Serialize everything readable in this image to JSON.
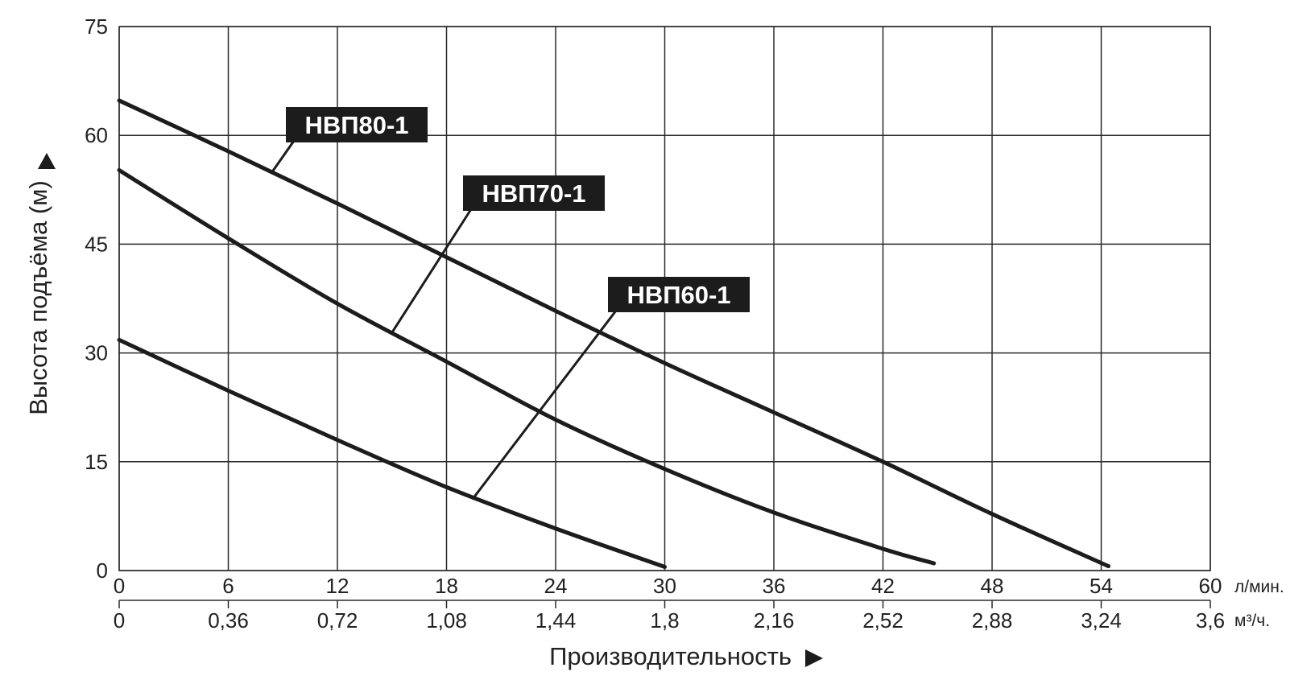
{
  "chart_data": {
    "type": "line",
    "xlabel": "Производительность",
    "ylabel": "Высота подъёма (м)",
    "x_unit": "л/мин.",
    "x2_unit": "м³/ч.",
    "x_ticks": [
      "0",
      "6",
      "12",
      "18",
      "24",
      "30",
      "36",
      "42",
      "48",
      "54",
      "60"
    ],
    "x2_ticks": [
      "0",
      "0,36",
      "0,72",
      "1,08",
      "1,44",
      "1,8",
      "2,16",
      "2,52",
      "2,88",
      "3,24",
      "3,6"
    ],
    "y_ticks": [
      "0",
      "15",
      "30",
      "45",
      "60",
      "75"
    ],
    "xlim": [
      0,
      60
    ],
    "ylim": [
      0,
      75
    ],
    "grid": true,
    "series": [
      {
        "name": "НВП80-1",
        "x": [
          0,
          6,
          12,
          18,
          24,
          30,
          36,
          42,
          48,
          54.4
        ],
        "y": [
          64.8,
          57.8,
          50.6,
          43.2,
          35.8,
          28.6,
          21.8,
          15.0,
          7.8,
          0.6
        ]
      },
      {
        "name": "НВП70-1",
        "x": [
          0,
          6,
          12,
          18,
          24,
          30,
          36,
          42,
          44.8
        ],
        "y": [
          55.2,
          45.8,
          36.8,
          28.8,
          20.8,
          14.0,
          8.0,
          3.0,
          1.0
        ]
      },
      {
        "name": "НВП60-1",
        "x": [
          0,
          6,
          12,
          18,
          24,
          30
        ],
        "y": [
          31.8,
          24.8,
          18.0,
          11.5,
          5.8,
          0.5
        ]
      }
    ]
  }
}
